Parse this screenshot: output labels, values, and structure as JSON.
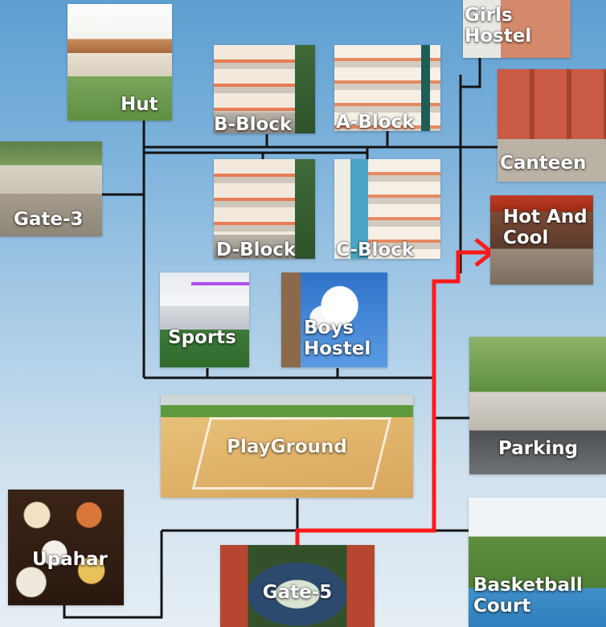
{
  "nodes": [
    {
      "id": "hut",
      "label": "Hut"
    },
    {
      "id": "b-block",
      "label": "B-Block"
    },
    {
      "id": "a-block",
      "label": "A-Block"
    },
    {
      "id": "girls-hostel",
      "label": "Girls\nHostel"
    },
    {
      "id": "canteen",
      "label": "Canteen"
    },
    {
      "id": "gate-3",
      "label": "Gate-3"
    },
    {
      "id": "d-block",
      "label": "D-Block"
    },
    {
      "id": "c-block",
      "label": "C-Block"
    },
    {
      "id": "hot-and-cool",
      "label": "Hot And\nCool"
    },
    {
      "id": "sports",
      "label": "Sports"
    },
    {
      "id": "boys-hostel",
      "label": "Boys\nHostel"
    },
    {
      "id": "parking",
      "label": "Parking"
    },
    {
      "id": "playground",
      "label": "PlayGround"
    },
    {
      "id": "upahar",
      "label": "Upahar"
    },
    {
      "id": "gate-5",
      "label": "Gate-5"
    },
    {
      "id": "basketball-court",
      "label": "Basketball\nCourt"
    }
  ],
  "route": {
    "from": "Gate-5",
    "to": "Hot And Cool",
    "color": "#ff1a1a"
  },
  "connector_color": "#141414"
}
